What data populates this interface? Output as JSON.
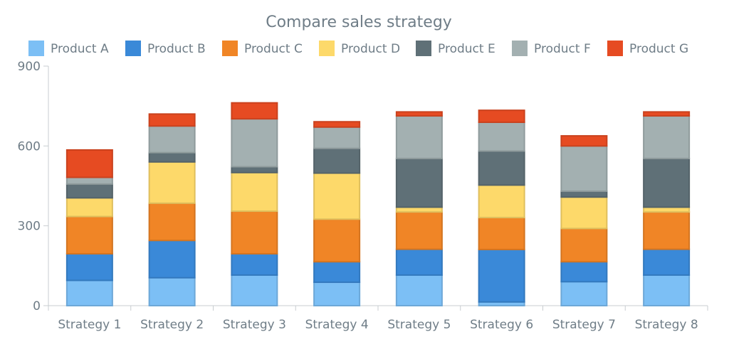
{
  "chart_data": {
    "type": "bar",
    "stacked": true,
    "title": "Compare sales strategy",
    "categories": [
      "Strategy 1",
      "Strategy 2",
      "Strategy 3",
      "Strategy 4",
      "Strategy 5",
      "Strategy 6",
      "Strategy 7",
      "Strategy 8"
    ],
    "ylim": [
      0,
      900
    ],
    "yticks": [
      "0",
      "300",
      "600",
      "900"
    ],
    "grid": false,
    "legend_position": "top",
    "series": [
      {
        "name": "Product A",
        "color": "#7cbff5",
        "values": [
          95,
          105,
          115,
          88,
          115,
          14,
          90,
          115
        ]
      },
      {
        "name": "Product B",
        "color": "#3a89d8",
        "values": [
          100,
          140,
          80,
          77,
          97,
          197,
          75,
          97
        ]
      },
      {
        "name": "Product C",
        "color": "#f08526",
        "values": [
          140,
          140,
          160,
          160,
          140,
          120,
          125,
          140
        ]
      },
      {
        "name": "Product D",
        "color": "#fdd96a",
        "values": [
          70,
          155,
          145,
          173,
          18,
          122,
          118,
          18
        ]
      },
      {
        "name": "Product E",
        "color": "#5f7077",
        "values": [
          52,
          35,
          22,
          93,
          183,
          128,
          22,
          183
        ]
      },
      {
        "name": "Product F",
        "color": "#a3b0b1",
        "values": [
          25,
          100,
          180,
          80,
          160,
          108,
          170,
          160
        ]
      },
      {
        "name": "Product G",
        "color": "#e64b22",
        "values": [
          103,
          45,
          60,
          20,
          15,
          45,
          38,
          15
        ]
      }
    ]
  }
}
